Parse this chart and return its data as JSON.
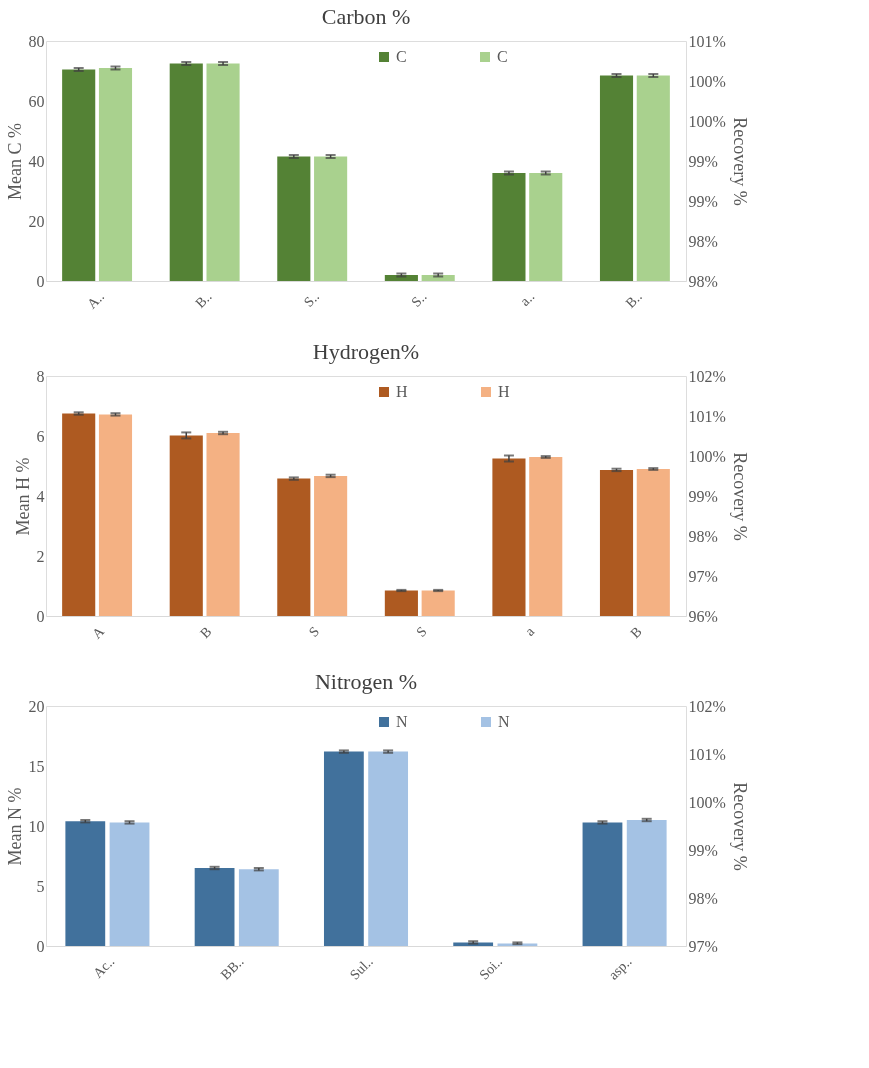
{
  "chart_data": [
    {
      "type": "bar",
      "title": "Carbon %",
      "ylabel": "Mean C %",
      "y2label": "Recovery %",
      "categories": [
        "A..",
        "B..",
        "S..",
        "S..",
        "a..",
        "B.."
      ],
      "series": [
        {
          "name": "C",
          "color": "#548235",
          "values": [
            70.5,
            72.5,
            41.5,
            2,
            36,
            68.5
          ],
          "errors": [
            0.5,
            0.5,
            0.5,
            0.5,
            0.5,
            0.5
          ]
        },
        {
          "name": "C",
          "color": "#a9d18e",
          "values": [
            71,
            72.5,
            41.5,
            2,
            36,
            68.5
          ],
          "errors": [
            0.5,
            0.5,
            0.5,
            0.5,
            0.5,
            0.5
          ]
        }
      ],
      "ylim": [
        0,
        80
      ],
      "yticks": [
        0,
        20,
        40,
        60,
        80
      ],
      "y2lim": [
        98,
        101
      ],
      "y2ticks": [
        {
          "value": 98,
          "label": "98%"
        },
        {
          "value": 98.5,
          "label": "98%"
        },
        {
          "value": 99,
          "label": "99%"
        },
        {
          "value": 99.5,
          "label": "99%"
        },
        {
          "value": 100,
          "label": "100%"
        },
        {
          "value": 100.5,
          "label": "100%"
        },
        {
          "value": 101,
          "label": "101%"
        }
      ],
      "legend": "top",
      "grid": false
    },
    {
      "type": "bar",
      "title": "Hydrogen%",
      "ylabel": "Mean H %",
      "y2label": "Recovery %",
      "categories": [
        "A",
        "B",
        "S",
        "S",
        "a",
        "B"
      ],
      "series": [
        {
          "name": "H",
          "color": "#ae5a21",
          "values": [
            6.75,
            6.02,
            4.58,
            0.85,
            5.25,
            4.87
          ],
          "errors": [
            0.04,
            0.1,
            0.04,
            0.02,
            0.1,
            0.04
          ]
        },
        {
          "name": "H",
          "color": "#f4b183",
          "values": [
            6.72,
            6.1,
            4.67,
            0.85,
            5.3,
            4.9
          ],
          "errors": [
            0.04,
            0.04,
            0.04,
            0.02,
            0.03,
            0.03
          ]
        }
      ],
      "ylim": [
        0,
        8
      ],
      "yticks": [
        0,
        2,
        4,
        6,
        8
      ],
      "y2lim": [
        96,
        102
      ],
      "y2ticks": [
        {
          "value": 96,
          "label": "96%"
        },
        {
          "value": 97,
          "label": "97%"
        },
        {
          "value": 98,
          "label": "98%"
        },
        {
          "value": 99,
          "label": "99%"
        },
        {
          "value": 100,
          "label": "100%"
        },
        {
          "value": 101,
          "label": "101%"
        },
        {
          "value": 102,
          "label": "102%"
        }
      ],
      "legend": "top",
      "grid": false
    },
    {
      "type": "bar",
      "title": "Nitrogen %",
      "ylabel": "Mean N %",
      "y2label": "Recovery %",
      "categories": [
        "Ac..",
        "BB..",
        "Sul..",
        "Soi..",
        "asp.."
      ],
      "series": [
        {
          "name": "N",
          "color": "#41719c",
          "values": [
            10.4,
            6.5,
            16.2,
            0.3,
            10.3
          ],
          "errors": [
            0.1,
            0.1,
            0.1,
            0.1,
            0.1
          ]
        },
        {
          "name": "N",
          "color": "#a4c2e4",
          "values": [
            10.3,
            6.4,
            16.2,
            0.2,
            10.5
          ],
          "errors": [
            0.1,
            0.1,
            0.1,
            [
              0.05,
              0.1
            ],
            0.1
          ]
        }
      ],
      "ylim": [
        0,
        20
      ],
      "yticks": [
        0,
        5,
        10,
        15,
        20
      ],
      "y2lim": [
        97,
        102
      ],
      "y2ticks": [
        {
          "value": 97,
          "label": "97%"
        },
        {
          "value": 98,
          "label": "98%"
        },
        {
          "value": 99,
          "label": "99%"
        },
        {
          "value": 100,
          "label": "100%"
        },
        {
          "value": 101,
          "label": "101%"
        },
        {
          "value": 102,
          "label": "102%"
        }
      ],
      "legend": "top",
      "grid": false
    }
  ]
}
